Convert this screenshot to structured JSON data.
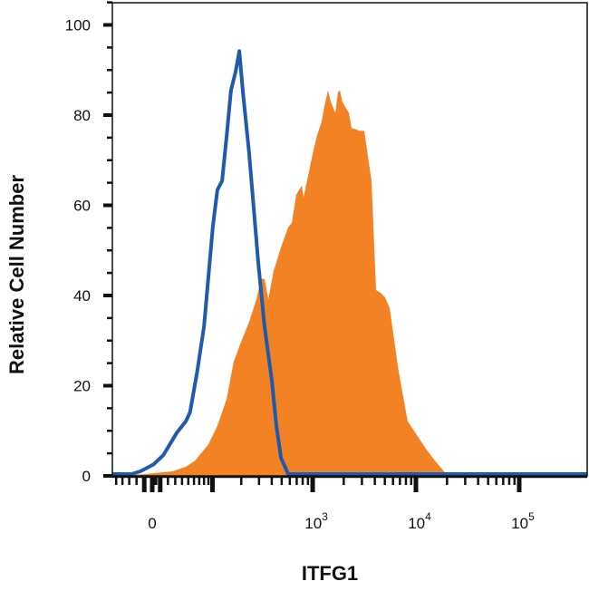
{
  "chart_data": {
    "type": "area",
    "title": "",
    "xlabel": "ITFG1",
    "ylabel": "Relative Cell Number",
    "x_scale": "biexponential",
    "xlim": [
      -57,
      455000
    ],
    "ylim": [
      0,
      105
    ],
    "grid": false,
    "legend": "none",
    "y_ticks": [
      {
        "value": 0,
        "label": "0"
      },
      {
        "value": 20,
        "label": "20"
      },
      {
        "value": 40,
        "label": "40"
      },
      {
        "value": 60,
        "label": "60"
      },
      {
        "value": 80,
        "label": "80"
      },
      {
        "value": 100,
        "label": "100"
      }
    ],
    "x_ticks": [
      {
        "value": 0,
        "base": "0",
        "exp": ""
      },
      {
        "value": 1000,
        "base": "10",
        "exp": "3"
      },
      {
        "value": 10000,
        "base": "10",
        "exp": "4"
      },
      {
        "value": 100000,
        "base": "10",
        "exp": "5"
      }
    ],
    "series": [
      {
        "style": "filled",
        "color": "#f28224",
        "x": [
          -57,
          -9,
          26,
          46,
          62,
          90,
          113,
          142,
          167,
          195,
          240,
          283,
          314,
          340,
          370,
          416,
          492,
          578,
          627,
          694,
          784,
          818,
          999,
          1104,
          1221,
          1297,
          1409,
          1496,
          1655,
          1760,
          1833,
          1948,
          2242,
          2383,
          2584,
          2859,
          3162,
          3717,
          4111,
          4547,
          5029,
          5564,
          6808,
          8329,
          10190,
          12480,
          15250,
          18660,
          20630,
          455000
        ],
        "y": [
          0,
          0.4,
          1,
          2,
          3.4,
          7.0,
          11.1,
          17.1,
          25.2,
          29.2,
          34.2,
          39.2,
          43.7,
          43.7,
          39.2,
          45.3,
          50.7,
          55.1,
          56.1,
          62.4,
          64.4,
          61.8,
          71.4,
          75.5,
          78.5,
          81.9,
          85.5,
          83.0,
          80.5,
          85.1,
          85.5,
          82.9,
          80.5,
          77.1,
          76.9,
          76.5,
          76.5,
          65.4,
          41.2,
          40.6,
          39.6,
          37.2,
          23.1,
          12.1,
          9.1,
          6.0,
          3.4,
          1.0,
          0,
          0
        ]
      },
      {
        "style": "outline",
        "color": "#1f5bad",
        "x": [
          -57,
          -27,
          -15,
          2,
          14,
          32,
          46,
          53,
          66,
          80,
          101,
          113,
          127,
          142,
          157,
          175,
          191,
          207,
          240,
          295,
          340,
          401,
          444,
          492,
          578,
          455000
        ],
        "y": [
          0.4,
          0.4,
          1,
          2.6,
          4.6,
          9.5,
          12.1,
          14.1,
          23.1,
          33.2,
          55.3,
          63.4,
          65.4,
          75.5,
          85.5,
          89.5,
          94.2,
          85.5,
          71.4,
          47.3,
          33.2,
          21.1,
          11.1,
          4.0,
          0.4,
          0.4
        ]
      }
    ]
  }
}
